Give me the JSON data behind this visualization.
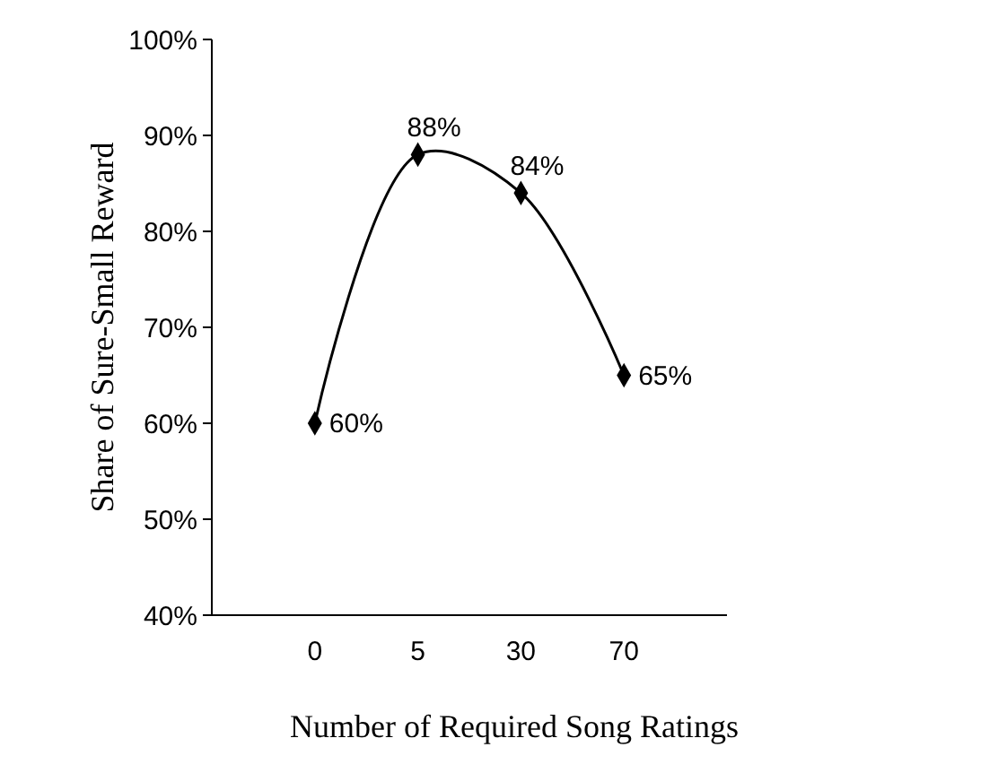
{
  "chart_data": {
    "type": "line",
    "xlabel": "Number of Required Song Ratings",
    "ylabel": "Share of Sure-Small Reward",
    "categories": [
      "0",
      "5",
      "30",
      "70"
    ],
    "series": [
      {
        "color": "#000000",
        "values": [
          60,
          88,
          84,
          65
        ],
        "value_labels": [
          "60%",
          "88%",
          "84%",
          "65%"
        ]
      }
    ],
    "ylim": [
      40,
      100
    ],
    "yticks": [
      {
        "value": 40,
        "label": "40%"
      },
      {
        "value": 50,
        "label": "50%"
      },
      {
        "value": 60,
        "label": "60%"
      },
      {
        "value": 70,
        "label": "70%"
      },
      {
        "value": 80,
        "label": "80%"
      },
      {
        "value": 90,
        "label": "90%"
      },
      {
        "value": 100,
        "label": "100%"
      }
    ],
    "marker": "diamond",
    "line_style": "solid"
  }
}
